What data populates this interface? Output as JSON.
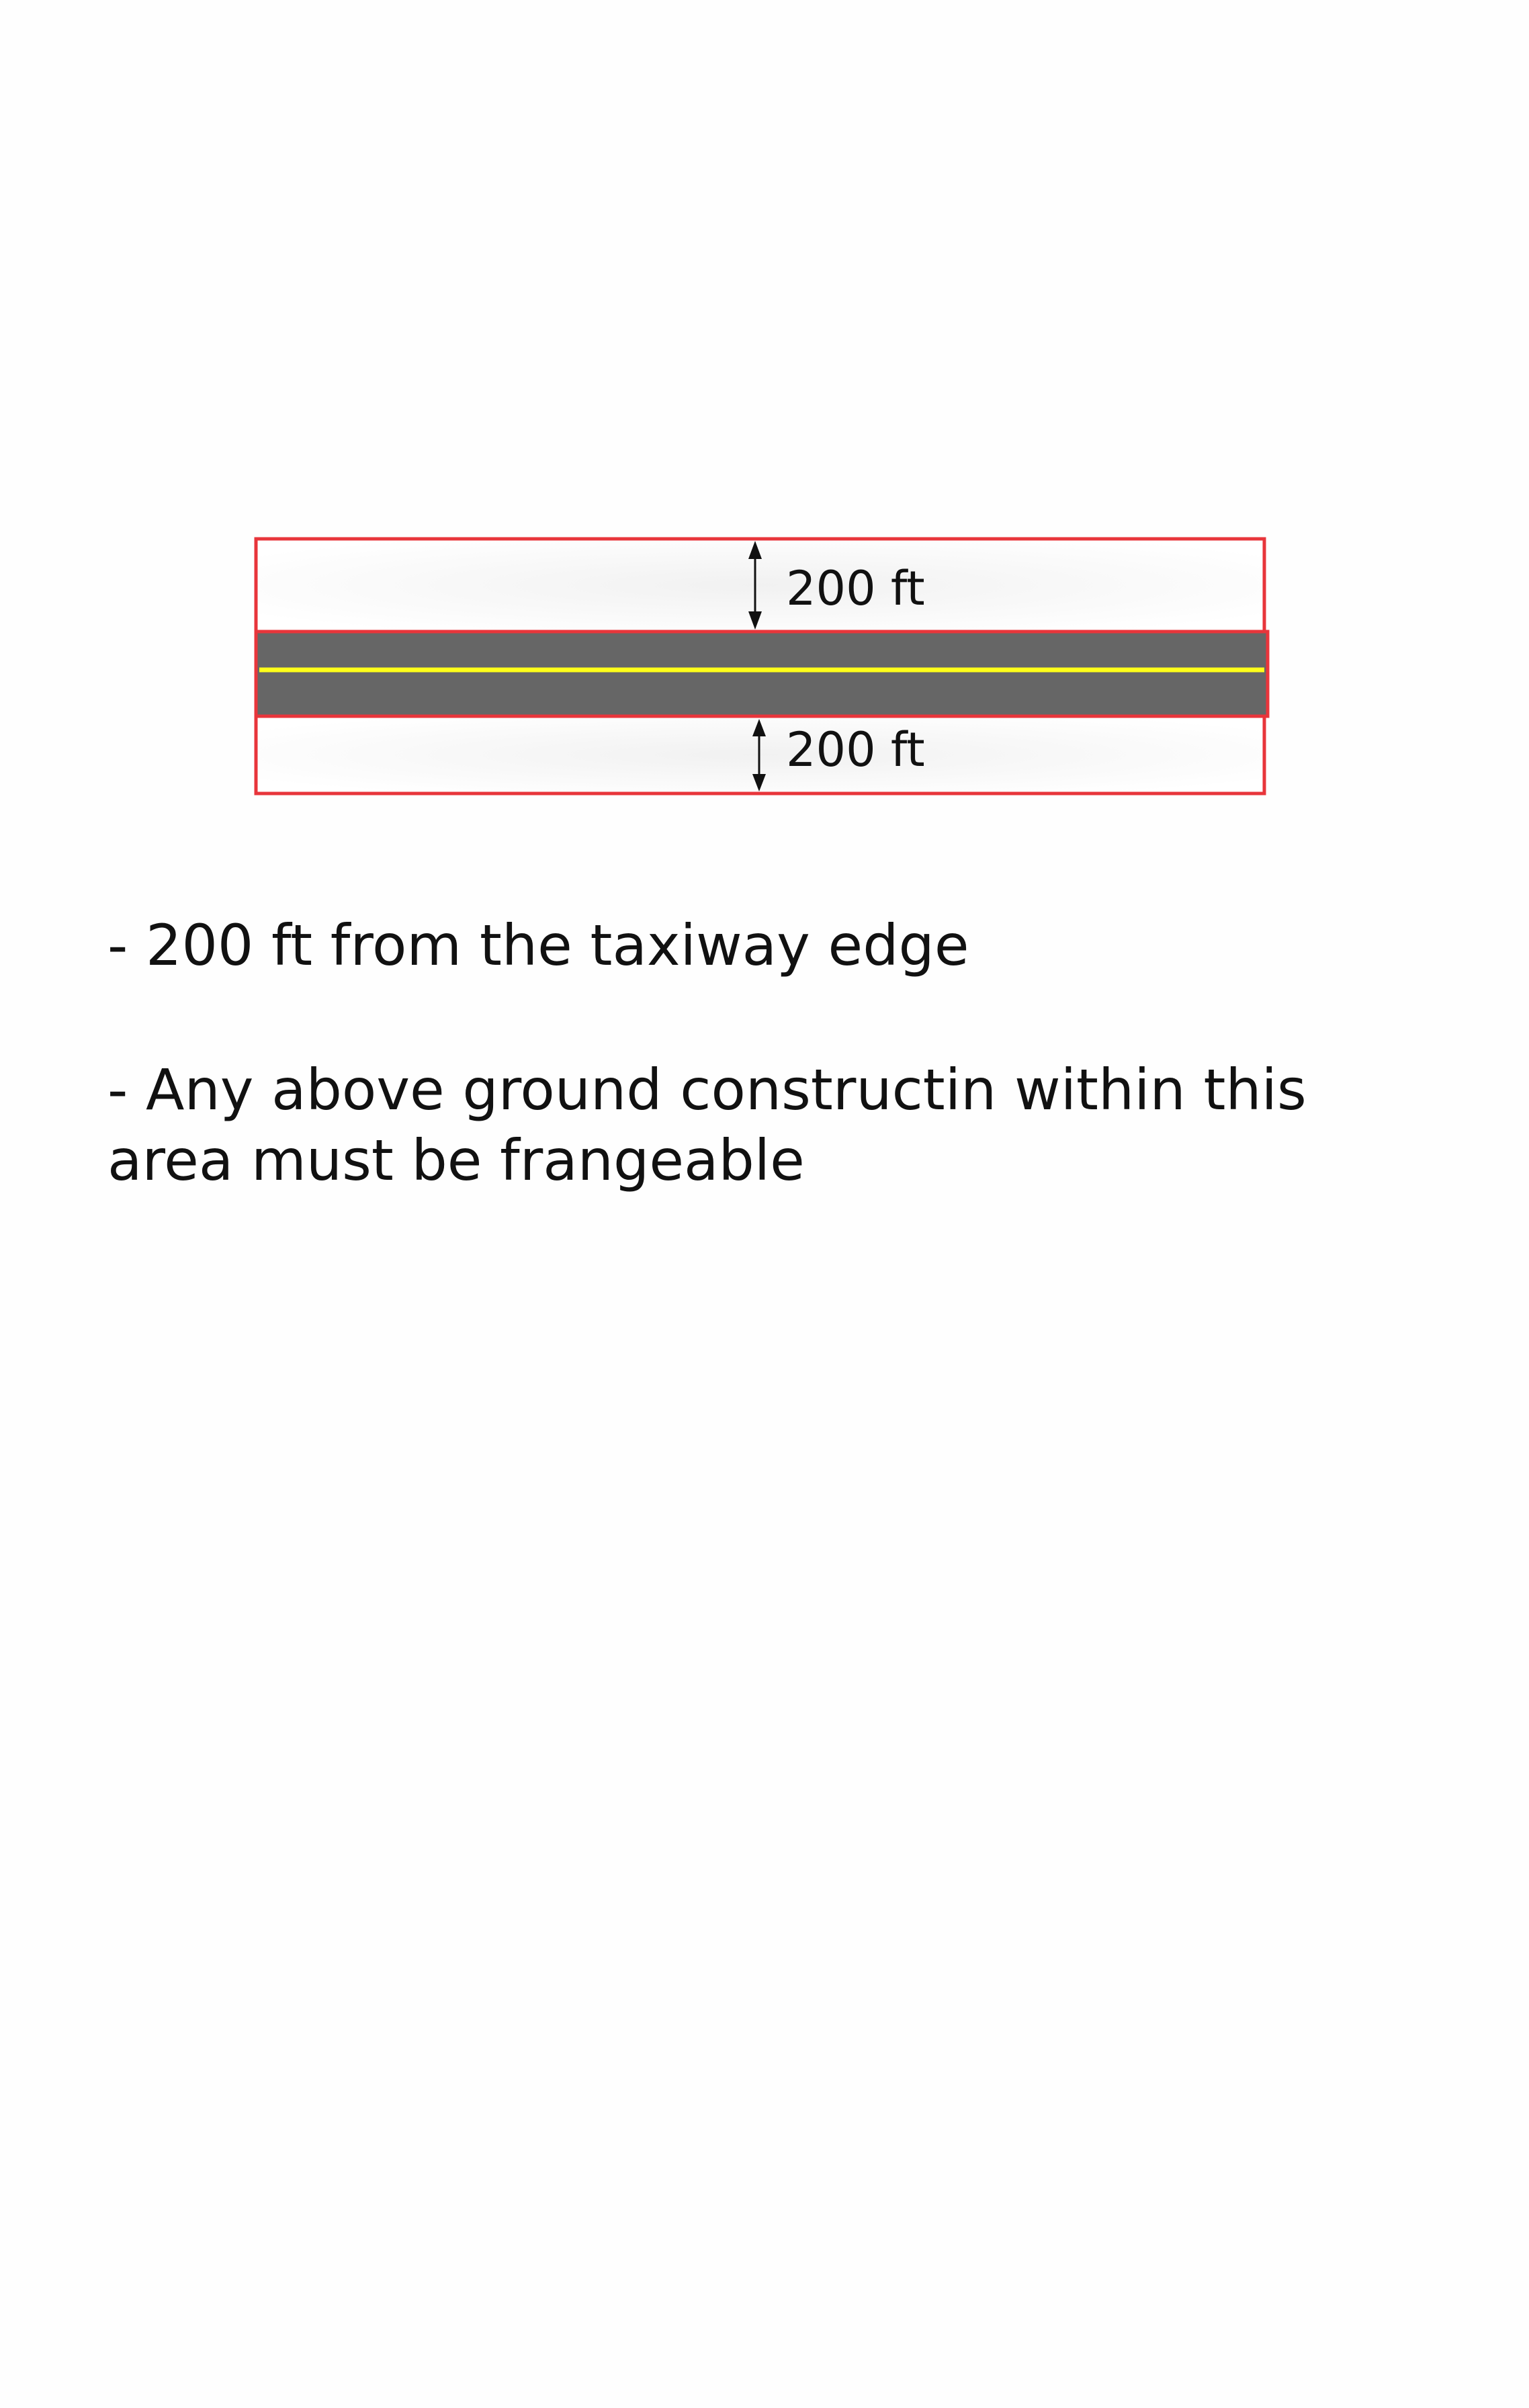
{
  "diagram": {
    "upper_dimension": "200 ft",
    "lower_dimension": "200 ft",
    "colors": {
      "boundary": "#e8353b",
      "pavement": "#666666",
      "centerline": "#ffff1a",
      "arrow": "#111111"
    }
  },
  "notes": {
    "line1": "- 200 ft from the taxiway edge",
    "line2a": "- Any above ground constructin within this",
    "line2b": "area must be frangeable"
  }
}
